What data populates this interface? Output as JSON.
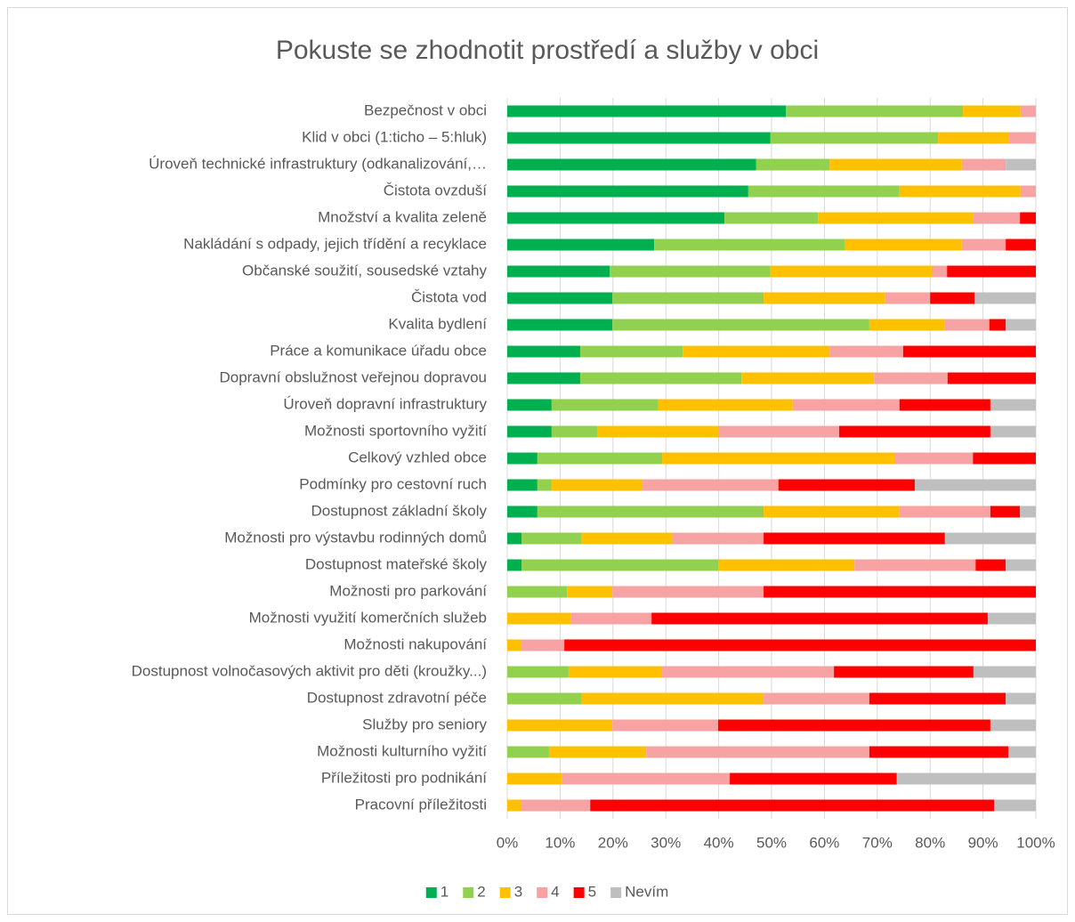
{
  "chart_data": {
    "type": "stacked_barh",
    "title": "Pokuste se zhodnotit prostředí a služby v obci",
    "categories": [
      "Bezpečnost v obci",
      "Klid v obci (1:ticho – 5:hluk)",
      "Úroveň technické infrastruktury (odkanalizování,…",
      "Čistota ovzduší",
      "Množství a kvalita zeleně",
      "Nakládání s odpady, jejich třídění a recyklace",
      "Občanské soužití, sousedské vztahy",
      "Čistota vod",
      "Kvalita bydlení",
      "Práce a komunikace úřadu obce",
      "Dopravní obslužnost veřejnou dopravou",
      "Úroveň dopravní infrastruktury",
      "Možnosti sportovního vyžití",
      "Celkový vzhled obce",
      "Podmínky pro cestovní ruch",
      "Dostupnost základní školy",
      "Možnosti pro výstavbu rodinných domů",
      "Dostupnost mateřské školy",
      "Možnosti pro parkování",
      "Možnosti využití komerčních služeb",
      "Možnosti nakupování",
      "Dostupnost volnočasových aktivit pro děti (kroužky...)",
      "Dostupnost zdravotní péče",
      "Služby pro seniory",
      "Možnosti kulturního vyžití",
      "Příležitosti pro podnikání",
      "Pracovní příležitosti"
    ],
    "series": [
      {
        "name": "1",
        "color": "#00b050",
        "values": [
          52.7,
          49.8,
          47.1,
          45.6,
          41.1,
          27.8,
          19.4,
          19.9,
          19.9,
          13.8,
          13.8,
          8.4,
          8.4,
          5.7,
          5.7,
          5.7,
          2.7,
          2.7,
          0,
          0,
          0,
          0,
          0,
          0,
          0,
          0,
          0
        ]
      },
      {
        "name": "2",
        "color": "#92d050",
        "values": [
          33.5,
          31.7,
          13.9,
          28.6,
          17.7,
          36.0,
          30.4,
          28.6,
          48.6,
          19.4,
          30.5,
          20.2,
          8.6,
          23.6,
          2.7,
          42.8,
          11.4,
          37.2,
          11.3,
          0,
          0,
          11.6,
          14.1,
          0,
          7.9,
          0,
          0
        ]
      },
      {
        "name": "3",
        "color": "#ffc000",
        "values": [
          10.9,
          13.3,
          25.0,
          22.9,
          29.4,
          22.2,
          30.5,
          23.0,
          14.3,
          27.8,
          25.1,
          25.4,
          22.9,
          44.1,
          17.2,
          25.7,
          17.2,
          25.8,
          8.6,
          12.1,
          2.7,
          17.7,
          34.4,
          19.9,
          18.4,
          10.4,
          2.7
        ]
      },
      {
        "name": "4",
        "color": "#f8a3a3",
        "values": [
          2.9,
          5.2,
          8.3,
          2.9,
          8.8,
          8.3,
          2.9,
          8.5,
          8.4,
          13.9,
          13.9,
          20.2,
          22.9,
          14.7,
          25.7,
          17.2,
          17.2,
          22.9,
          28.6,
          15.2,
          8.1,
          32.5,
          20.0,
          20.0,
          42.2,
          31.7,
          13.0
        ]
      },
      {
        "name": "5",
        "color": "#ff0000",
        "values": [
          0,
          0,
          0,
          0,
          3.0,
          5.7,
          16.8,
          8.4,
          3.1,
          25.1,
          16.7,
          17.2,
          28.6,
          11.9,
          25.8,
          5.6,
          34.3,
          5.7,
          51.5,
          63.6,
          89.2,
          26.4,
          25.8,
          51.5,
          26.3,
          31.6,
          76.4
        ]
      },
      {
        "name": "Nevím",
        "color": "#bfbfbf",
        "values": [
          0,
          0,
          5.7,
          0,
          0,
          0,
          0,
          11.6,
          5.7,
          0,
          0,
          8.6,
          8.6,
          0,
          22.9,
          3.0,
          17.2,
          5.7,
          0,
          9.1,
          0,
          11.8,
          5.7,
          8.6,
          5.2,
          26.3,
          7.9
        ]
      }
    ],
    "xlim": [
      0,
      100
    ],
    "xticks": [
      {
        "value": 0,
        "label": "0%"
      },
      {
        "value": 10,
        "label": "10%"
      },
      {
        "value": 20,
        "label": "20%"
      },
      {
        "value": 30,
        "label": "30%"
      },
      {
        "value": 40,
        "label": "40%"
      },
      {
        "value": 50,
        "label": "50%"
      },
      {
        "value": 60,
        "label": "60%"
      },
      {
        "value": 70,
        "label": "70%"
      },
      {
        "value": 80,
        "label": "80%"
      },
      {
        "value": 90,
        "label": "90%"
      },
      {
        "value": 100,
        "label": "100%"
      }
    ],
    "grid": true,
    "legend": "bottom"
  }
}
